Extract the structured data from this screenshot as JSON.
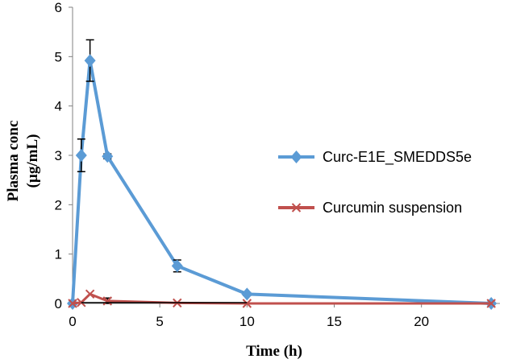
{
  "chart_data": {
    "type": "line",
    "title": "",
    "xlabel": "Time (h)",
    "ylabel_lines": [
      "Plasma conc",
      "(µg/mL)"
    ],
    "xlim": [
      0,
      24.5
    ],
    "ylim": [
      0,
      6
    ],
    "xticks": [
      0,
      5,
      10,
      15,
      20
    ],
    "yticks": [
      0,
      1,
      2,
      3,
      4,
      5,
      6
    ],
    "grid": false,
    "legend_position": "right",
    "series": [
      {
        "name": "Curc-E1E_SMEDDS5e",
        "color": "#5b9bd5",
        "marker": "diamond",
        "x": [
          0,
          0.5,
          1,
          2,
          6,
          10,
          24
        ],
        "y": [
          0,
          3.0,
          4.92,
          2.98,
          0.76,
          0.19,
          0
        ],
        "error": [
          0,
          0.33,
          0.42,
          0.05,
          0.12,
          0.03,
          0
        ]
      },
      {
        "name": "Curcumin suspension",
        "color": "#c0504d",
        "marker": "x",
        "x": [
          0,
          0.5,
          1,
          2,
          6,
          10,
          24
        ],
        "y": [
          0,
          0.02,
          0.19,
          0.05,
          0.01,
          0.0,
          0
        ],
        "error": [
          0,
          0,
          0,
          0.06,
          0,
          0,
          0
        ]
      }
    ],
    "legend_entries": [
      "Curc-E1E_SMEDDS5e",
      "Curcumin suspension"
    ]
  }
}
